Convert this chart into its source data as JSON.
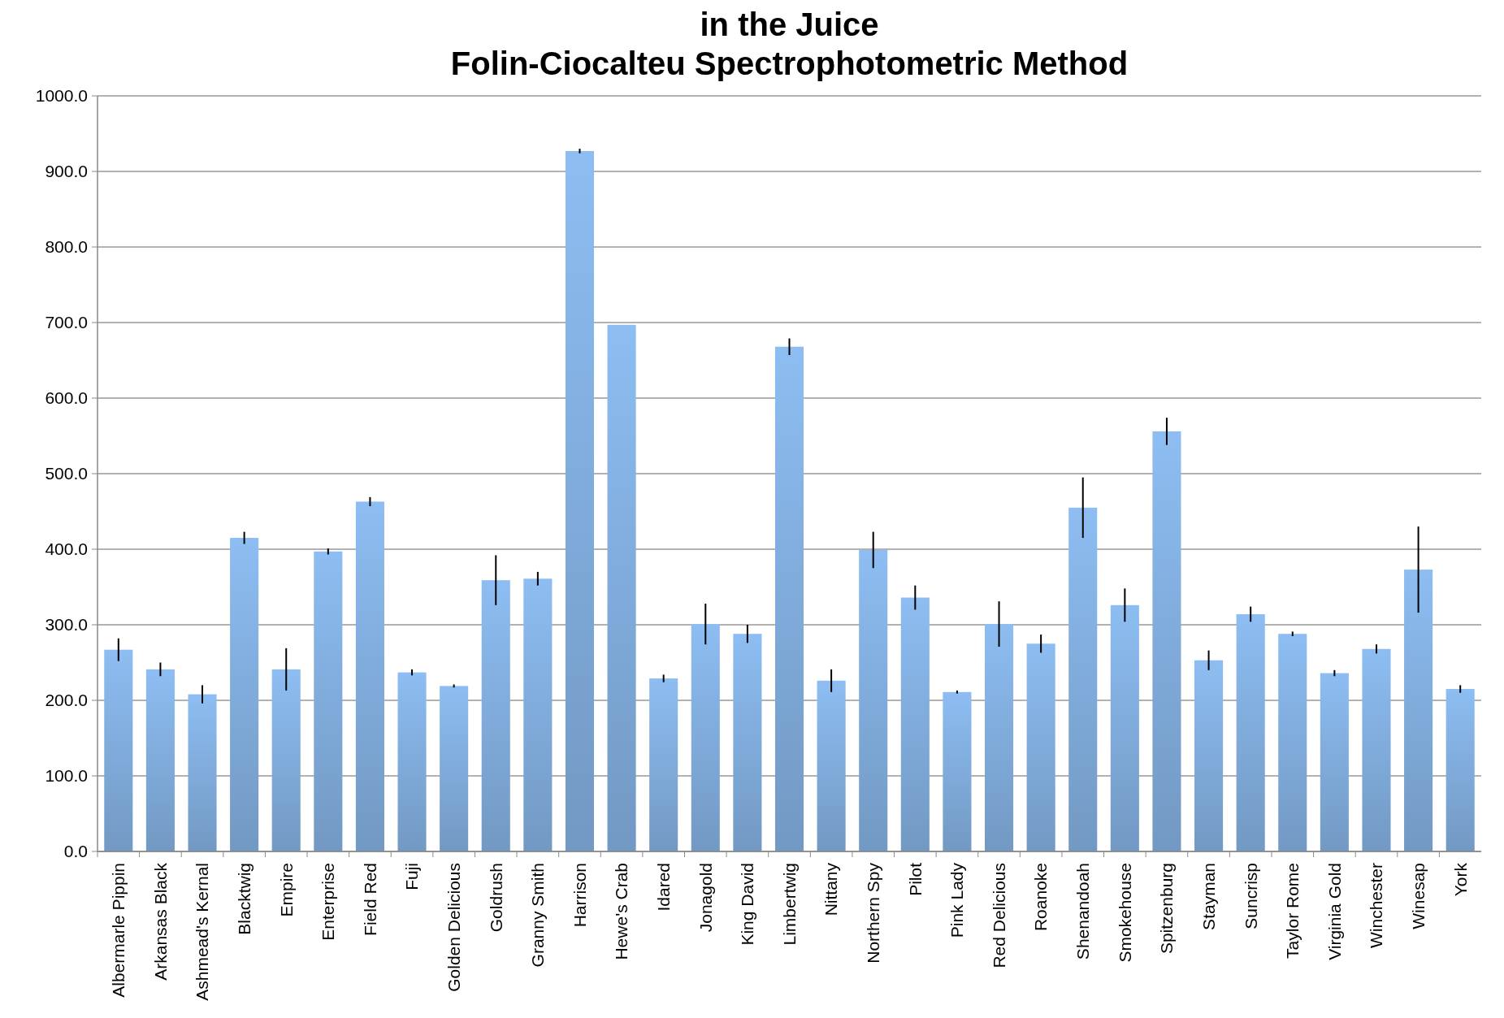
{
  "chart_data": {
    "type": "bar",
    "title": "in the Juice",
    "subtitle": "Folin-Ciocalteu Spectrophotometric Method",
    "categories": [
      "Albermarle Pippin",
      "Arkansas Black",
      "Ashmead's Kernal",
      "Blacktwig",
      "Empire",
      "Enterprise",
      "Field Red",
      "Fuji",
      "Golden Delicious",
      "Goldrush",
      "Granny Smith",
      "Harrison",
      "Hewe's Crab",
      "Idared",
      "Jonagold",
      "King David",
      "Limbertwig",
      "Nittany",
      "Northern Spy",
      "Pilot",
      "Pink Lady",
      "Red Delicious",
      "Roanoke",
      "Shenandoah",
      "Smokehouse",
      "Spitzenburg",
      "Stayman",
      "Suncrisp",
      "Taylor Rome",
      "Virginia Gold",
      "Winchester",
      "Winesap",
      "York"
    ],
    "values": [
      267,
      241,
      208,
      415,
      241,
      397,
      463,
      237,
      219,
      359,
      361,
      927,
      697,
      229,
      301,
      288,
      668,
      226,
      399,
      336,
      211,
      301,
      275,
      455,
      326,
      556,
      253,
      314,
      288,
      236,
      268,
      373,
      215
    ],
    "errors": [
      15,
      9,
      12,
      8,
      28,
      4,
      6,
      4,
      2,
      33,
      9,
      3,
      null,
      5,
      27,
      12,
      11,
      15,
      24,
      16,
      2,
      30,
      12,
      40,
      22,
      18,
      13,
      10,
      3,
      4,
      6,
      57,
      5
    ],
    "color": "#8dbdf2",
    "ylim": [
      0,
      1000
    ],
    "yticks": [
      {
        "value": 0,
        "label": "0.0"
      },
      {
        "value": 100,
        "label": "100.0"
      },
      {
        "value": 200,
        "label": "200.0"
      },
      {
        "value": 300,
        "label": "300.0"
      },
      {
        "value": 400,
        "label": "400.0"
      },
      {
        "value": 500,
        "label": "500.0"
      },
      {
        "value": 600,
        "label": "600.0"
      },
      {
        "value": 700,
        "label": "700.0"
      },
      {
        "value": 800,
        "label": "800.0"
      },
      {
        "value": 900,
        "label": "900.0"
      },
      {
        "value": 1000,
        "label": "1000.0"
      }
    ],
    "grid": "y"
  }
}
